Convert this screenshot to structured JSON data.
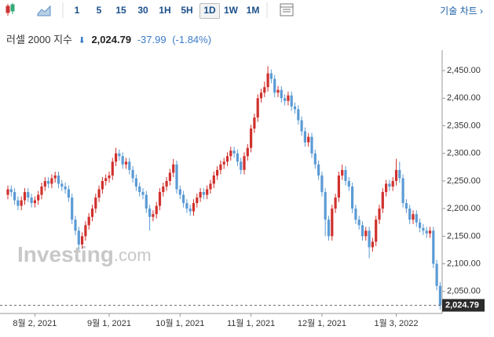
{
  "toolbar": {
    "intervals": [
      "1",
      "5",
      "15",
      "30",
      "1H",
      "5H",
      "1D",
      "1W",
      "1M"
    ],
    "selected_interval": 6,
    "link": "기술 차트"
  },
  "quote": {
    "name": "러셀 2000 지수",
    "price": "2,024.79",
    "change": "-37.99",
    "change_pct": "(-1.84%)"
  },
  "watermark": [
    "Investing",
    ".com"
  ],
  "chart_data": {
    "type": "candlestick",
    "up_color": "#d0312d",
    "down_color": "#5b9bd5",
    "ylim": [
      2010,
      2487
    ],
    "yticks": [
      {
        "value": 2050,
        "label": "2,050.00"
      },
      {
        "value": 2100,
        "label": "2,100.00"
      },
      {
        "value": 2150,
        "label": "2,150.00"
      },
      {
        "value": 2200,
        "label": "2,200.00"
      },
      {
        "value": 2250,
        "label": "2,250.00"
      },
      {
        "value": 2300,
        "label": "2,300.00"
      },
      {
        "value": 2350,
        "label": "2,350.00"
      },
      {
        "value": 2400,
        "label": "2,400.00"
      },
      {
        "value": 2450,
        "label": "2,450.00"
      }
    ],
    "current": {
      "value": 2024.79,
      "label": "2,024.79"
    },
    "categories": [
      null,
      null,
      null,
      null,
      null,
      null,
      null,
      null,
      "8월 2, 2021",
      null,
      null,
      null,
      null,
      null,
      null,
      null,
      null,
      null,
      null,
      null,
      null,
      null,
      null,
      null,
      null,
      null,
      null,
      null,
      null,
      null,
      "9월 1, 2021",
      null,
      null,
      null,
      null,
      null,
      null,
      null,
      null,
      null,
      null,
      null,
      null,
      null,
      null,
      null,
      null,
      null,
      null,
      null,
      null,
      "10월 1, 2021",
      null,
      null,
      null,
      null,
      null,
      null,
      null,
      null,
      null,
      null,
      null,
      null,
      null,
      null,
      null,
      null,
      null,
      null,
      null,
      null,
      "11월 1, 2021",
      null,
      null,
      null,
      null,
      null,
      null,
      null,
      null,
      null,
      null,
      null,
      null,
      null,
      null,
      null,
      null,
      null,
      null,
      null,
      null,
      "12월 1, 2021",
      null,
      null,
      null,
      null,
      null,
      null,
      null,
      null,
      null,
      null,
      null,
      null,
      null,
      null,
      null,
      null,
      null,
      null,
      null,
      null,
      null,
      "1월 3, 2022",
      null,
      null,
      null,
      null,
      null,
      null,
      null,
      null,
      null,
      null,
      null,
      null,
      null
    ],
    "candles": [
      [
        2225,
        2242,
        2217,
        2235
      ],
      [
        2235,
        2242,
        2222,
        2230
      ],
      [
        2230,
        2237,
        2207,
        2215
      ],
      [
        2215,
        2222,
        2197,
        2205
      ],
      [
        2205,
        2222,
        2197,
        2215
      ],
      [
        2215,
        2237,
        2207,
        2230
      ],
      [
        2230,
        2237,
        2212,
        2220
      ],
      [
        2220,
        2227,
        2202,
        2210
      ],
      [
        2210,
        2222,
        2202,
        2215
      ],
      [
        2215,
        2232,
        2207,
        2225
      ],
      [
        2225,
        2247,
        2217,
        2240
      ],
      [
        2240,
        2257,
        2232,
        2250
      ],
      [
        2250,
        2257,
        2237,
        2245
      ],
      [
        2245,
        2262,
        2237,
        2255
      ],
      [
        2255,
        2267,
        2247,
        2260
      ],
      [
        2260,
        2267,
        2237,
        2245
      ],
      [
        2245,
        2252,
        2232,
        2240
      ],
      [
        2240,
        2247,
        2227,
        2235
      ],
      [
        2235,
        2242,
        2212,
        2220
      ],
      [
        2220,
        2227,
        2172,
        2180
      ],
      [
        2180,
        2187,
        2152,
        2160
      ],
      [
        2160,
        2167,
        2125,
        2135
      ],
      [
        2135,
        2157,
        2127,
        2150
      ],
      [
        2150,
        2177,
        2142,
        2170
      ],
      [
        2170,
        2192,
        2162,
        2185
      ],
      [
        2185,
        2207,
        2177,
        2200
      ],
      [
        2200,
        2227,
        2192,
        2220
      ],
      [
        2220,
        2242,
        2212,
        2235
      ],
      [
        2235,
        2257,
        2227,
        2250
      ],
      [
        2250,
        2262,
        2242,
        2255
      ],
      [
        2255,
        2267,
        2247,
        2260
      ],
      [
        2260,
        2292,
        2252,
        2285
      ],
      [
        2285,
        2310,
        2277,
        2300
      ],
      [
        2300,
        2307,
        2287,
        2295
      ],
      [
        2295,
        2302,
        2272,
        2280
      ],
      [
        2280,
        2292,
        2272,
        2285
      ],
      [
        2285,
        2292,
        2262,
        2270
      ],
      [
        2270,
        2277,
        2247,
        2255
      ],
      [
        2255,
        2262,
        2232,
        2240
      ],
      [
        2240,
        2247,
        2222,
        2230
      ],
      [
        2230,
        2237,
        2217,
        2225
      ],
      [
        2225,
        2232,
        2192,
        2200
      ],
      [
        2200,
        2207,
        2160,
        2185
      ],
      [
        2185,
        2197,
        2177,
        2190
      ],
      [
        2190,
        2212,
        2182,
        2205
      ],
      [
        2205,
        2237,
        2197,
        2230
      ],
      [
        2230,
        2247,
        2222,
        2240
      ],
      [
        2240,
        2257,
        2232,
        2250
      ],
      [
        2250,
        2272,
        2242,
        2265
      ],
      [
        2265,
        2290,
        2257,
        2280
      ],
      [
        2280,
        2287,
        2227,
        2235
      ],
      [
        2235,
        2242,
        2217,
        2225
      ],
      [
        2225,
        2232,
        2202,
        2210
      ],
      [
        2210,
        2217,
        2192,
        2200
      ],
      [
        2200,
        2207,
        2187,
        2195
      ],
      [
        2195,
        2217,
        2187,
        2210
      ],
      [
        2210,
        2227,
        2202,
        2220
      ],
      [
        2220,
        2237,
        2212,
        2230
      ],
      [
        2230,
        2237,
        2217,
        2225
      ],
      [
        2225,
        2242,
        2217,
        2235
      ],
      [
        2235,
        2252,
        2227,
        2245
      ],
      [
        2245,
        2267,
        2237,
        2260
      ],
      [
        2260,
        2277,
        2252,
        2270
      ],
      [
        2270,
        2287,
        2262,
        2280
      ],
      [
        2280,
        2292,
        2272,
        2285
      ],
      [
        2285,
        2302,
        2277,
        2295
      ],
      [
        2295,
        2312,
        2287,
        2305
      ],
      [
        2305,
        2312,
        2292,
        2300
      ],
      [
        2300,
        2307,
        2277,
        2285
      ],
      [
        2285,
        2292,
        2262,
        2270
      ],
      [
        2270,
        2302,
        2262,
        2295
      ],
      [
        2295,
        2317,
        2287,
        2310
      ],
      [
        2310,
        2352,
        2302,
        2345
      ],
      [
        2345,
        2372,
        2337,
        2365
      ],
      [
        2365,
        2407,
        2357,
        2400
      ],
      [
        2400,
        2417,
        2392,
        2410
      ],
      [
        2410,
        2430,
        2402,
        2420
      ],
      [
        2420,
        2458,
        2412,
        2445
      ],
      [
        2445,
        2452,
        2427,
        2435
      ],
      [
        2435,
        2442,
        2402,
        2410
      ],
      [
        2410,
        2422,
        2402,
        2415
      ],
      [
        2415,
        2422,
        2392,
        2400
      ],
      [
        2400,
        2407,
        2387,
        2395
      ],
      [
        2395,
        2412,
        2387,
        2405
      ],
      [
        2405,
        2412,
        2377,
        2385
      ],
      [
        2385,
        2392,
        2372,
        2380
      ],
      [
        2380,
        2387,
        2352,
        2360
      ],
      [
        2360,
        2367,
        2332,
        2340
      ],
      [
        2340,
        2347,
        2312,
        2320
      ],
      [
        2320,
        2337,
        2312,
        2330
      ],
      [
        2330,
        2337,
        2292,
        2300
      ],
      [
        2300,
        2307,
        2272,
        2280
      ],
      [
        2280,
        2287,
        2252,
        2260
      ],
      [
        2260,
        2267,
        2222,
        2230
      ],
      [
        2230,
        2237,
        2150,
        2180
      ],
      [
        2180,
        2187,
        2142,
        2150
      ],
      [
        2150,
        2207,
        2142,
        2200
      ],
      [
        2200,
        2227,
        2192,
        2220
      ],
      [
        2220,
        2267,
        2212,
        2260
      ],
      [
        2260,
        2280,
        2252,
        2270
      ],
      [
        2270,
        2277,
        2242,
        2250
      ],
      [
        2250,
        2257,
        2232,
        2240
      ],
      [
        2240,
        2247,
        2192,
        2200
      ],
      [
        2200,
        2207,
        2172,
        2180
      ],
      [
        2180,
        2187,
        2162,
        2170
      ],
      [
        2170,
        2177,
        2142,
        2150
      ],
      [
        2150,
        2167,
        2142,
        2160
      ],
      [
        2160,
        2167,
        2110,
        2130
      ],
      [
        2130,
        2147,
        2122,
        2140
      ],
      [
        2140,
        2187,
        2132,
        2180
      ],
      [
        2180,
        2207,
        2172,
        2200
      ],
      [
        2200,
        2237,
        2192,
        2230
      ],
      [
        2230,
        2252,
        2222,
        2245
      ],
      [
        2245,
        2252,
        2232,
        2240
      ],
      [
        2240,
        2257,
        2232,
        2250
      ],
      [
        2250,
        2290,
        2242,
        2270
      ],
      [
        2270,
        2285,
        2247,
        2255
      ],
      [
        2255,
        2262,
        2202,
        2210
      ],
      [
        2210,
        2217,
        2192,
        2200
      ],
      [
        2200,
        2207,
        2172,
        2180
      ],
      [
        2180,
        2197,
        2172,
        2190
      ],
      [
        2190,
        2197,
        2167,
        2175
      ],
      [
        2175,
        2182,
        2157,
        2165
      ],
      [
        2165,
        2172,
        2152,
        2160
      ],
      [
        2160,
        2167,
        2147,
        2155
      ],
      [
        2155,
        2167,
        2147,
        2160
      ],
      [
        2160,
        2167,
        2092,
        2100
      ],
      [
        2100,
        2107,
        2052,
        2060
      ],
      [
        2060,
        2067,
        2017,
        2024.79
      ]
    ]
  }
}
